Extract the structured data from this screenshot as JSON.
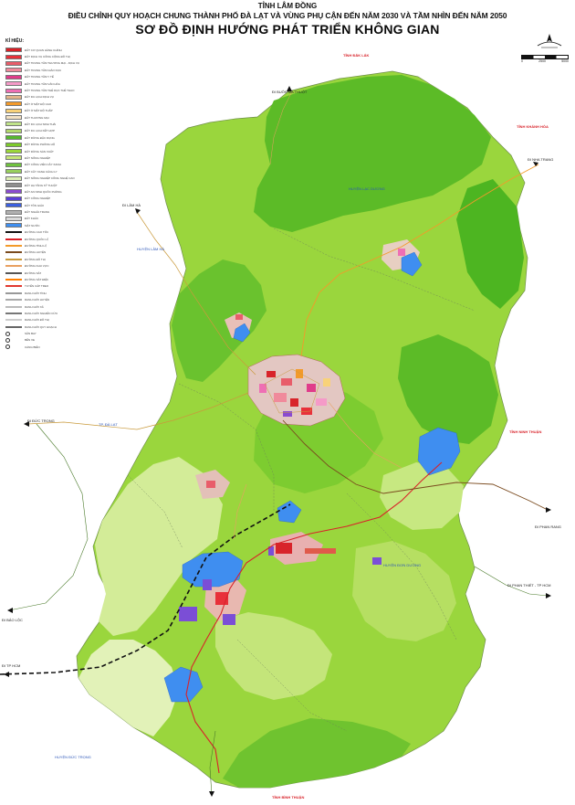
{
  "header": {
    "province": "TỈNH LÂM ĐỒNG",
    "subtitle": "ĐIỀU CHỈNH QUY HOẠCH CHUNG THÀNH PHỐ ĐÀ LẠT VÀ VÙNG PHỤ CẬN ĐẾN NĂM 2030 VÀ TẦM NHÌN ĐẾN NĂM 2050",
    "main_title": "SƠ ĐỒ ĐỊNH HƯỚNG PHÁT TRIỂN KHÔNG GIAN"
  },
  "legend": {
    "title": "KÍ HIỆU:",
    "items": [
      {
        "label": "ĐẤT CƠ QUAN HÀNH CHÍNH",
        "color": "#d81f26",
        "kind": "fill"
      },
      {
        "label": "ĐẤT DỊCH VỤ CÔNG CỘNG ĐÔ THỊ",
        "color": "#e8303a",
        "kind": "fill"
      },
      {
        "label": "ĐẤT TRUNG TÂM THƯƠNG MẠI - DỊCH VỤ",
        "color": "#e85d6a",
        "kind": "fill"
      },
      {
        "label": "ĐẤT TRUNG TÂM GIÁO DỤC",
        "color": "#f08a9b",
        "kind": "fill"
      },
      {
        "label": "ĐẤT TRUNG TÂM Y TẾ",
        "color": "#e03c8a",
        "kind": "fill"
      },
      {
        "label": "ĐẤT TRUNG TÂM VĂN HÓA",
        "color": "#f59ac8",
        "kind": "fill"
      },
      {
        "label": "ĐẤT TRUNG TÂM THỂ DỤC THỂ THAO",
        "color": "#ee6fb4",
        "kind": "fill"
      },
      {
        "label": "ĐẤT DU LỊCH DỊCH VỤ",
        "color": "#e2b48a",
        "kind": "fill"
      },
      {
        "label": "ĐẤT Ở MẬT ĐỘ CAO",
        "color": "#f39a2a",
        "kind": "fill"
      },
      {
        "label": "ĐẤT Ở MẬT ĐỘ THẤP",
        "color": "#f8d27a",
        "kind": "fill"
      },
      {
        "label": "ĐẤT THƯƠNG MẠI",
        "color": "#f3e2c4",
        "kind": "fill"
      },
      {
        "label": "ĐẤT DU LỊCH SINH THÁI",
        "color": "#c0e48a",
        "kind": "fill"
      },
      {
        "label": "ĐẤT DU LỊCH KẾT HỢP",
        "color": "#b3d86c",
        "kind": "fill"
      },
      {
        "label": "ĐẤT RỪNG ĐẶC DỤNG",
        "color": "#56b82e",
        "kind": "fill"
      },
      {
        "label": "ĐẤT RỪNG PHÒNG HỘ",
        "color": "#7ccb2a",
        "kind": "fill"
      },
      {
        "label": "ĐẤT RỪNG SẢN XUẤT",
        "color": "#9bd63a",
        "kind": "fill"
      },
      {
        "label": "ĐẤT NÔNG NGHIỆP",
        "color": "#c6e679",
        "kind": "fill"
      },
      {
        "label": "ĐẤT CÔNG VIÊN CÂY XANH",
        "color": "#6fc23e",
        "kind": "fill"
      },
      {
        "label": "ĐẤT CÂY XANH CÁCH LY",
        "color": "#98cf5d",
        "kind": "fill"
      },
      {
        "label": "ĐẤT NÔNG NGHIỆP CÔNG NGHỆ CAO",
        "color": "#dcefb2",
        "kind": "fill"
      },
      {
        "label": "ĐẤT HẠ TẦNG KỸ THUẬT",
        "color": "#8f8f8f",
        "kind": "fill"
      },
      {
        "label": "ĐẤT AN NINH QUỐC PHÒNG",
        "color": "#8a4bd0",
        "kind": "fill"
      },
      {
        "label": "ĐẤT CÔNG NGHIỆP",
        "color": "#5a3fd6",
        "kind": "fill"
      },
      {
        "label": "ĐẤT TÔN GIÁO",
        "color": "#3b5fe0",
        "kind": "fill"
      },
      {
        "label": "ĐẤT NGHĨA TRANG",
        "color": "#b0b0b0",
        "kind": "fill"
      },
      {
        "label": "ĐẤT KHÁC",
        "color": "#d9d9d9",
        "kind": "fill"
      },
      {
        "label": "MẶT NƯỚC",
        "color": "#3e8ef0",
        "kind": "fill"
      },
      {
        "label": "ĐƯỜNG CAO TỐC",
        "color": "#111111",
        "kind": "line"
      },
      {
        "label": "ĐƯỜNG QUỐC LỘ",
        "color": "#d81f26",
        "kind": "line"
      },
      {
        "label": "ĐƯỜNG TỈNH LỘ",
        "color": "#f39a2a",
        "kind": "line"
      },
      {
        "label": "ĐƯỜNG HUYỆN",
        "color": "#7a4a1e",
        "kind": "line"
      },
      {
        "label": "ĐƯỜNG ĐÔ THỊ",
        "color": "#c99a3c",
        "kind": "line"
      },
      {
        "label": "ĐƯỜNG KHU VỰC",
        "color": "#e8a060",
        "kind": "line"
      },
      {
        "label": "ĐƯỜNG SẮT",
        "color": "#555555",
        "kind": "line"
      },
      {
        "label": "ĐƯỜNG SẮT ĐIỆN",
        "color": "#ff7f00",
        "kind": "line"
      },
      {
        "label": "TUYẾN CÁP TREO",
        "color": "#e0392f",
        "kind": "line"
      },
      {
        "label": "RANH GIỚI TỈNH",
        "color": "#999999",
        "kind": "line"
      },
      {
        "label": "RANH GIỚI HUYỆN",
        "color": "#aaaaaa",
        "kind": "line"
      },
      {
        "label": "RANH GIỚI XÃ",
        "color": "#bbbbbb",
        "kind": "line"
      },
      {
        "label": "RANH GIỚI NGHIÊN CỨU",
        "color": "#777777",
        "kind": "line"
      },
      {
        "label": "RANH GIỚI ĐÔ THỊ",
        "color": "#cccccc",
        "kind": "line"
      },
      {
        "label": "RANH GIỚI QUY HOẠCH",
        "color": "#666666",
        "kind": "line"
      },
      {
        "label": "SÂN BAY",
        "color": "#ffffff",
        "kind": "dot"
      },
      {
        "label": "BẾN XE",
        "color": "#ffffff",
        "kind": "dot"
      },
      {
        "label": "CẢNG BIỂN",
        "color": "#ffffff",
        "kind": "dot"
      }
    ]
  },
  "labels": {
    "ha_tay_lat": "TỈNH ĐẮK LẮK",
    "khanh_hoa": "TỈNH KHÁNH HÒA",
    "ninh_thuan": "TỈNH NINH THUẬN",
    "binh_thuan": "TỈNH BÌNH THUẬN",
    "di_buon_ma_thuot": "ĐI BUÔN MA THUỘT",
    "di_nha_trang": "ĐI NHA TRANG",
    "di_lam_ha": "ĐI LÂM HÀ",
    "di_bao_loc": "ĐI BẢO LỘC",
    "di_phan_rang": "ĐI PHAN RANG",
    "di_phan_thiet": "ĐI PHAN THIẾT - TP HCM",
    "di_duc_trong": "ĐI ĐỨC TRỌNG",
    "di_tphcm": "ĐI TP HCM",
    "lac_duong": "HUYỆN LẠC DƯƠNG",
    "lam_ha": "HUYỆN LÂM HÀ",
    "don_duong": "HUYỆN ĐƠN DƯƠNG",
    "duc_trong": "HUYỆN ĐỨC TRỌNG",
    "da_lat": "TP. ĐÀ LẠT"
  },
  "scale": {
    "left": "0",
    "mid": "2500",
    "right": "5000"
  }
}
